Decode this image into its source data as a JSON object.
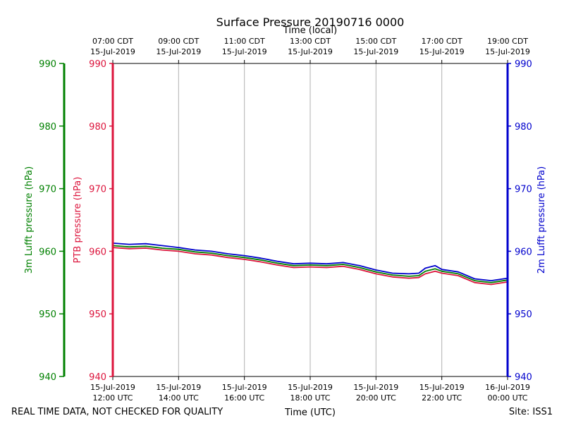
{
  "chart_data": {
    "type": "line",
    "title": "Surface Pressure 20190716 0000",
    "xlabel_bottom": "Time (UTC)",
    "xlabel_top": "Time (local)",
    "ylabel_left_outer": "3m Lufft pressure (hPa)",
    "ylabel_left_inner": "PTB pressure (hPa)",
    "ylabel_right": "2m Lufft pressure (hPa)",
    "footer_left": "REAL TIME DATA, NOT CHECKED FOR QUALITY",
    "footer_right": "Site: ISS1",
    "xlim": [
      12,
      24
    ],
    "ylim": [
      940,
      990
    ],
    "yticks": [
      940,
      950,
      960,
      970,
      980,
      990
    ],
    "grid": true,
    "bottom_ticks": [
      {
        "x": 12,
        "line1": "15-Jul-2019",
        "line2": "12:00 UTC"
      },
      {
        "x": 14,
        "line1": "15-Jul-2019",
        "line2": "14:00 UTC"
      },
      {
        "x": 16,
        "line1": "15-Jul-2019",
        "line2": "16:00 UTC"
      },
      {
        "x": 18,
        "line1": "15-Jul-2019",
        "line2": "18:00 UTC"
      },
      {
        "x": 20,
        "line1": "15-Jul-2019",
        "line2": "20:00 UTC"
      },
      {
        "x": 22,
        "line1": "15-Jul-2019",
        "line2": "22:00 UTC"
      },
      {
        "x": 24,
        "line1": "16-Jul-2019",
        "line2": "00:00 UTC"
      }
    ],
    "top_ticks": [
      {
        "x": 12,
        "line1": "07:00 CDT",
        "line2": "15-Jul-2019"
      },
      {
        "x": 14,
        "line1": "09:00 CDT",
        "line2": "15-Jul-2019"
      },
      {
        "x": 16,
        "line1": "11:00 CDT",
        "line2": "15-Jul-2019"
      },
      {
        "x": 18,
        "line1": "13:00 CDT",
        "line2": "15-Jul-2019"
      },
      {
        "x": 20,
        "line1": "15:00 CDT",
        "line2": "15-Jul-2019"
      },
      {
        "x": 22,
        "line1": "17:00 CDT",
        "line2": "15-Jul-2019"
      },
      {
        "x": 24,
        "line1": "19:00 CDT",
        "line2": "15-Jul-2019"
      }
    ],
    "x": [
      12.0,
      12.5,
      13.0,
      13.5,
      14.0,
      14.5,
      15.0,
      15.5,
      16.0,
      16.5,
      17.0,
      17.5,
      18.0,
      18.5,
      19.0,
      19.5,
      20.0,
      20.5,
      21.0,
      21.3,
      21.5,
      21.8,
      22.0,
      22.5,
      23.0,
      23.5,
      24.0
    ],
    "series": [
      {
        "name": "PTB pressure",
        "color": "#dc143c",
        "values": [
          960.6,
          960.4,
          960.5,
          960.2,
          960.0,
          959.6,
          959.4,
          959.0,
          958.7,
          958.3,
          957.8,
          957.4,
          957.5,
          957.4,
          957.6,
          957.1,
          956.4,
          955.9,
          955.7,
          955.8,
          956.4,
          956.8,
          956.5,
          956.1,
          955.0,
          954.7,
          955.1
        ]
      },
      {
        "name": "3m Lufft pressure",
        "color": "#008000",
        "values": [
          960.9,
          960.7,
          960.8,
          960.5,
          960.3,
          959.9,
          959.7,
          959.3,
          959.0,
          958.6,
          958.1,
          957.7,
          957.8,
          957.7,
          957.9,
          957.4,
          956.7,
          956.2,
          956.0,
          956.1,
          956.8,
          957.2,
          956.8,
          956.4,
          955.3,
          955.0,
          955.4
        ]
      },
      {
        "name": "2m Lufft pressure",
        "color": "#0000cd",
        "values": [
          961.3,
          961.1,
          961.2,
          960.9,
          960.6,
          960.2,
          960.0,
          959.6,
          959.3,
          958.9,
          958.4,
          958.0,
          958.1,
          958.0,
          958.2,
          957.7,
          957.0,
          956.5,
          956.4,
          956.5,
          957.3,
          957.7,
          957.1,
          956.7,
          955.6,
          955.3,
          955.7
        ]
      }
    ]
  },
  "colors": {
    "ptb_axis": "#dc143c",
    "lufft3m_axis": "#008000",
    "lufft2m_axis": "#0000cd",
    "grid": "#b0b0b0"
  }
}
